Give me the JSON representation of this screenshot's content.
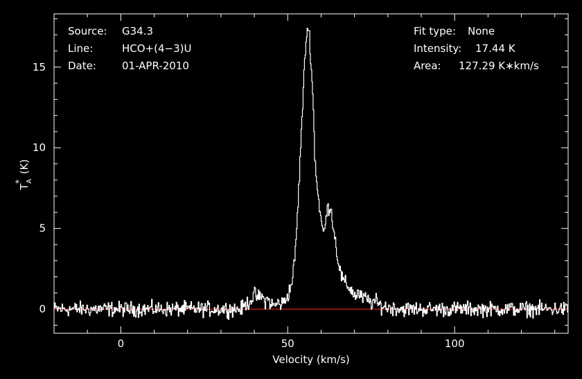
{
  "chart_data": {
    "type": "line",
    "xlabel": "Velocity (km/s)",
    "ylabel": "T_A^* (K)",
    "xlim": [
      -20,
      134
    ],
    "ylim": [
      -1.5,
      18.3
    ],
    "x_ticks": [
      0,
      50,
      100
    ],
    "y_ticks": [
      0,
      5,
      10,
      15
    ],
    "baseline_value": 0,
    "colors": {
      "background": "#000000",
      "foreground": "#ffffff",
      "baseline": "#ff2a2a"
    },
    "series": [
      {
        "points": [
          [
            -20,
            0.0
          ],
          [
            10,
            0.0
          ],
          [
            30,
            0.0
          ],
          [
            36,
            0.0
          ],
          [
            37.5,
            0.3
          ],
          [
            39,
            0.6
          ],
          [
            40,
            0.9
          ],
          [
            41,
            0.7
          ],
          [
            42,
            0.8
          ],
          [
            43,
            0.5
          ],
          [
            44,
            0.6
          ],
          [
            45,
            0.3
          ],
          [
            46,
            0.2
          ],
          [
            47,
            0.4
          ],
          [
            48,
            0.3
          ],
          [
            49,
            0.5
          ],
          [
            50,
            0.9
          ],
          [
            51,
            1.5
          ],
          [
            52,
            3.0
          ],
          [
            53,
            6.5
          ],
          [
            54,
            11.0
          ],
          [
            55,
            15.3
          ],
          [
            55.6,
            17.2
          ],
          [
            56,
            17.4
          ],
          [
            56.5,
            16.8
          ],
          [
            57,
            14.8
          ],
          [
            57.5,
            13.0
          ],
          [
            58,
            9.5
          ],
          [
            59,
            7.0
          ],
          [
            60,
            5.4
          ],
          [
            60.5,
            4.7
          ],
          [
            61,
            5.0
          ],
          [
            61.5,
            5.8
          ],
          [
            62,
            6.3
          ],
          [
            62.5,
            6.4
          ],
          [
            63,
            6.0
          ],
          [
            64,
            4.5
          ],
          [
            65,
            3.0
          ],
          [
            66,
            2.0
          ],
          [
            67,
            1.6
          ],
          [
            68,
            1.4
          ],
          [
            69,
            1.2
          ],
          [
            70,
            0.8
          ],
          [
            71,
            1.0
          ],
          [
            72,
            0.7
          ],
          [
            73,
            0.7
          ],
          [
            74,
            0.5
          ],
          [
            75,
            0.4
          ],
          [
            76,
            0.5
          ],
          [
            77,
            0.3
          ],
          [
            78,
            0.2
          ],
          [
            80,
            0.1
          ],
          [
            85,
            0.0
          ],
          [
            100,
            0.0
          ],
          [
            134,
            0.0
          ]
        ]
      }
    ]
  },
  "info": {
    "source_label": "Source:",
    "source_value": "G34.3",
    "line_label": "Line:",
    "line_value": "HCO+(4−3)U",
    "date_label": "Date:",
    "date_value": "01-APR-2010",
    "fit_label": "Fit type:",
    "fit_value": "None",
    "intensity_label": "Intensity:",
    "intensity_value": "17.44 K",
    "area_label": "Area:",
    "area_value": "127.29 K∗km/s"
  }
}
